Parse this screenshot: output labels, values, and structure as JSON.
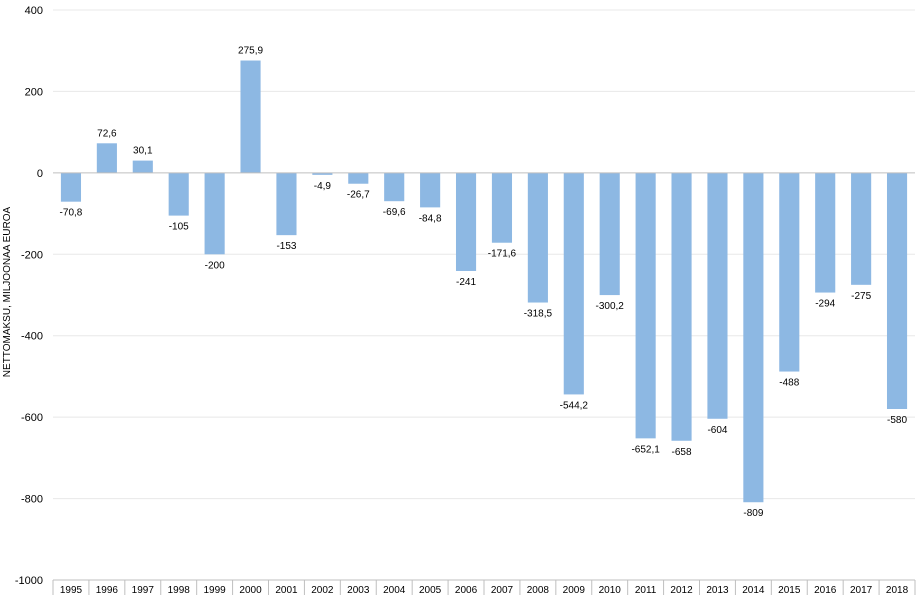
{
  "chart_data": {
    "type": "bar",
    "title": "",
    "xlabel": "",
    "ylabel": "NETTOMAKSU, MILJOONAA EUROA",
    "ylim": [
      -1000,
      400
    ],
    "yticks": [
      400,
      200,
      0,
      -200,
      -400,
      -600,
      -800,
      -1000
    ],
    "ytick_labels": [
      "400",
      "200",
      "0",
      "-200",
      "-400",
      "-600",
      "-800",
      "-1000"
    ],
    "grid": true,
    "legend": "none",
    "categories": [
      "1995",
      "1996",
      "1997",
      "1998",
      "1999",
      "2000",
      "2001",
      "2002",
      "2003",
      "2004",
      "2005",
      "2006",
      "2007",
      "2008",
      "2009",
      "2010",
      "2011",
      "2012",
      "2013",
      "2014",
      "2015",
      "2016",
      "2017",
      "2018"
    ],
    "values": [
      -70.8,
      72.6,
      30.1,
      -105,
      -200,
      275.9,
      -153,
      -4.9,
      -26.7,
      -69.6,
      -84.8,
      -241,
      -171.6,
      -318.5,
      -544.2,
      -300.2,
      -652.1,
      -658,
      -604,
      -809,
      -488,
      -294,
      -275,
      -580
    ],
    "value_labels": [
      "-70,8",
      "72,6",
      "30,1",
      "-105",
      "-200",
      "275,9",
      "-153",
      "-4,9",
      "-26,7",
      "-69,6",
      "-84,8",
      "-241",
      "-171,6",
      "-318,5",
      "-544,2",
      "-300,2",
      "-652,1",
      "-658",
      "-604",
      "-809",
      "-488",
      "-294",
      "-275",
      "-580"
    ],
    "colors": {
      "bar": "#8DB8E3",
      "grid": "#E8E8E8",
      "zero_line": "#BFBFBF",
      "table_border": "#BFBFBF"
    }
  }
}
